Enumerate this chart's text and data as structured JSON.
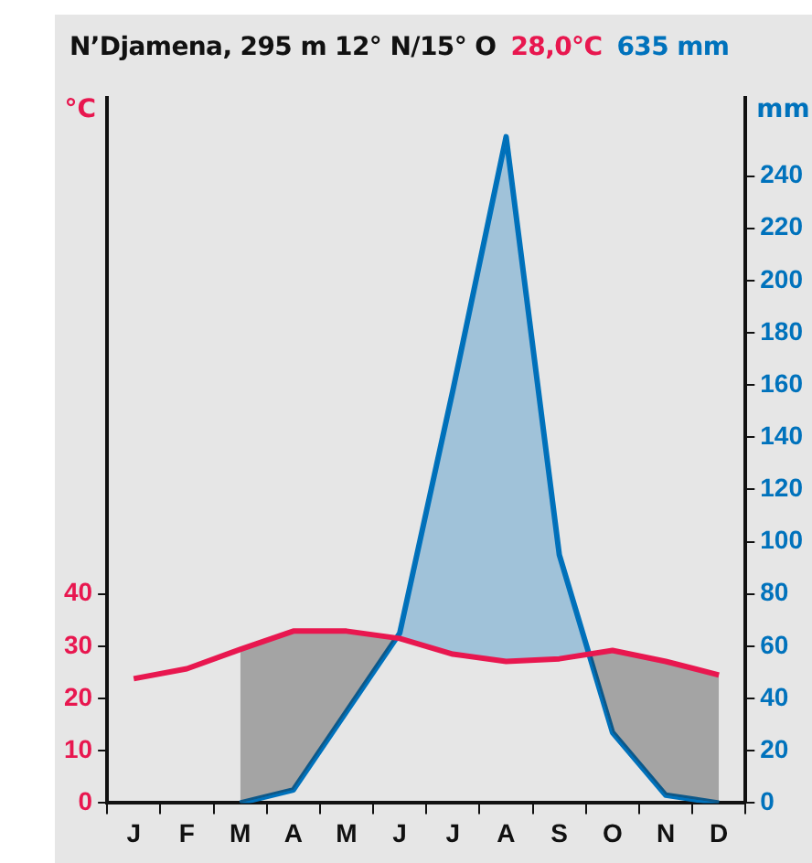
{
  "chart_data": {
    "type": "line",
    "title": "N’Djamena, 295 m  12° N/15° O",
    "annotations": [
      "28,0°C",
      "635 mm"
    ],
    "ylabel": "°C",
    "y2label": "mm",
    "categories": [
      "J",
      "F",
      "M",
      "A",
      "M",
      "J",
      "J",
      "A",
      "S",
      "O",
      "N",
      "D"
    ],
    "series": [
      {
        "color": "#e8174f",
        "values": [
          23.8,
          25.7,
          29.4,
          32.9,
          32.9,
          31.5,
          28.5,
          27.1,
          27.6,
          29.2,
          27.1,
          24.5
        ]
      },
      {
        "color": "#0072bc",
        "axis": "y2",
        "values": [
          null,
          null,
          0,
          5,
          35,
          65,
          158,
          255,
          95,
          27,
          3,
          0
        ]
      }
    ],
    "ylim": [
      0,
      135
    ],
    "yticks": [
      0,
      10,
      20,
      30,
      40
    ],
    "y2lim": [
      0,
      270
    ],
    "y2ticks": [
      0,
      20,
      40,
      60,
      80,
      100,
      120,
      140,
      160,
      180,
      200,
      220,
      240
    ],
    "grid": false,
    "legend": false,
    "marker": "none",
    "line_style": "solid"
  }
}
